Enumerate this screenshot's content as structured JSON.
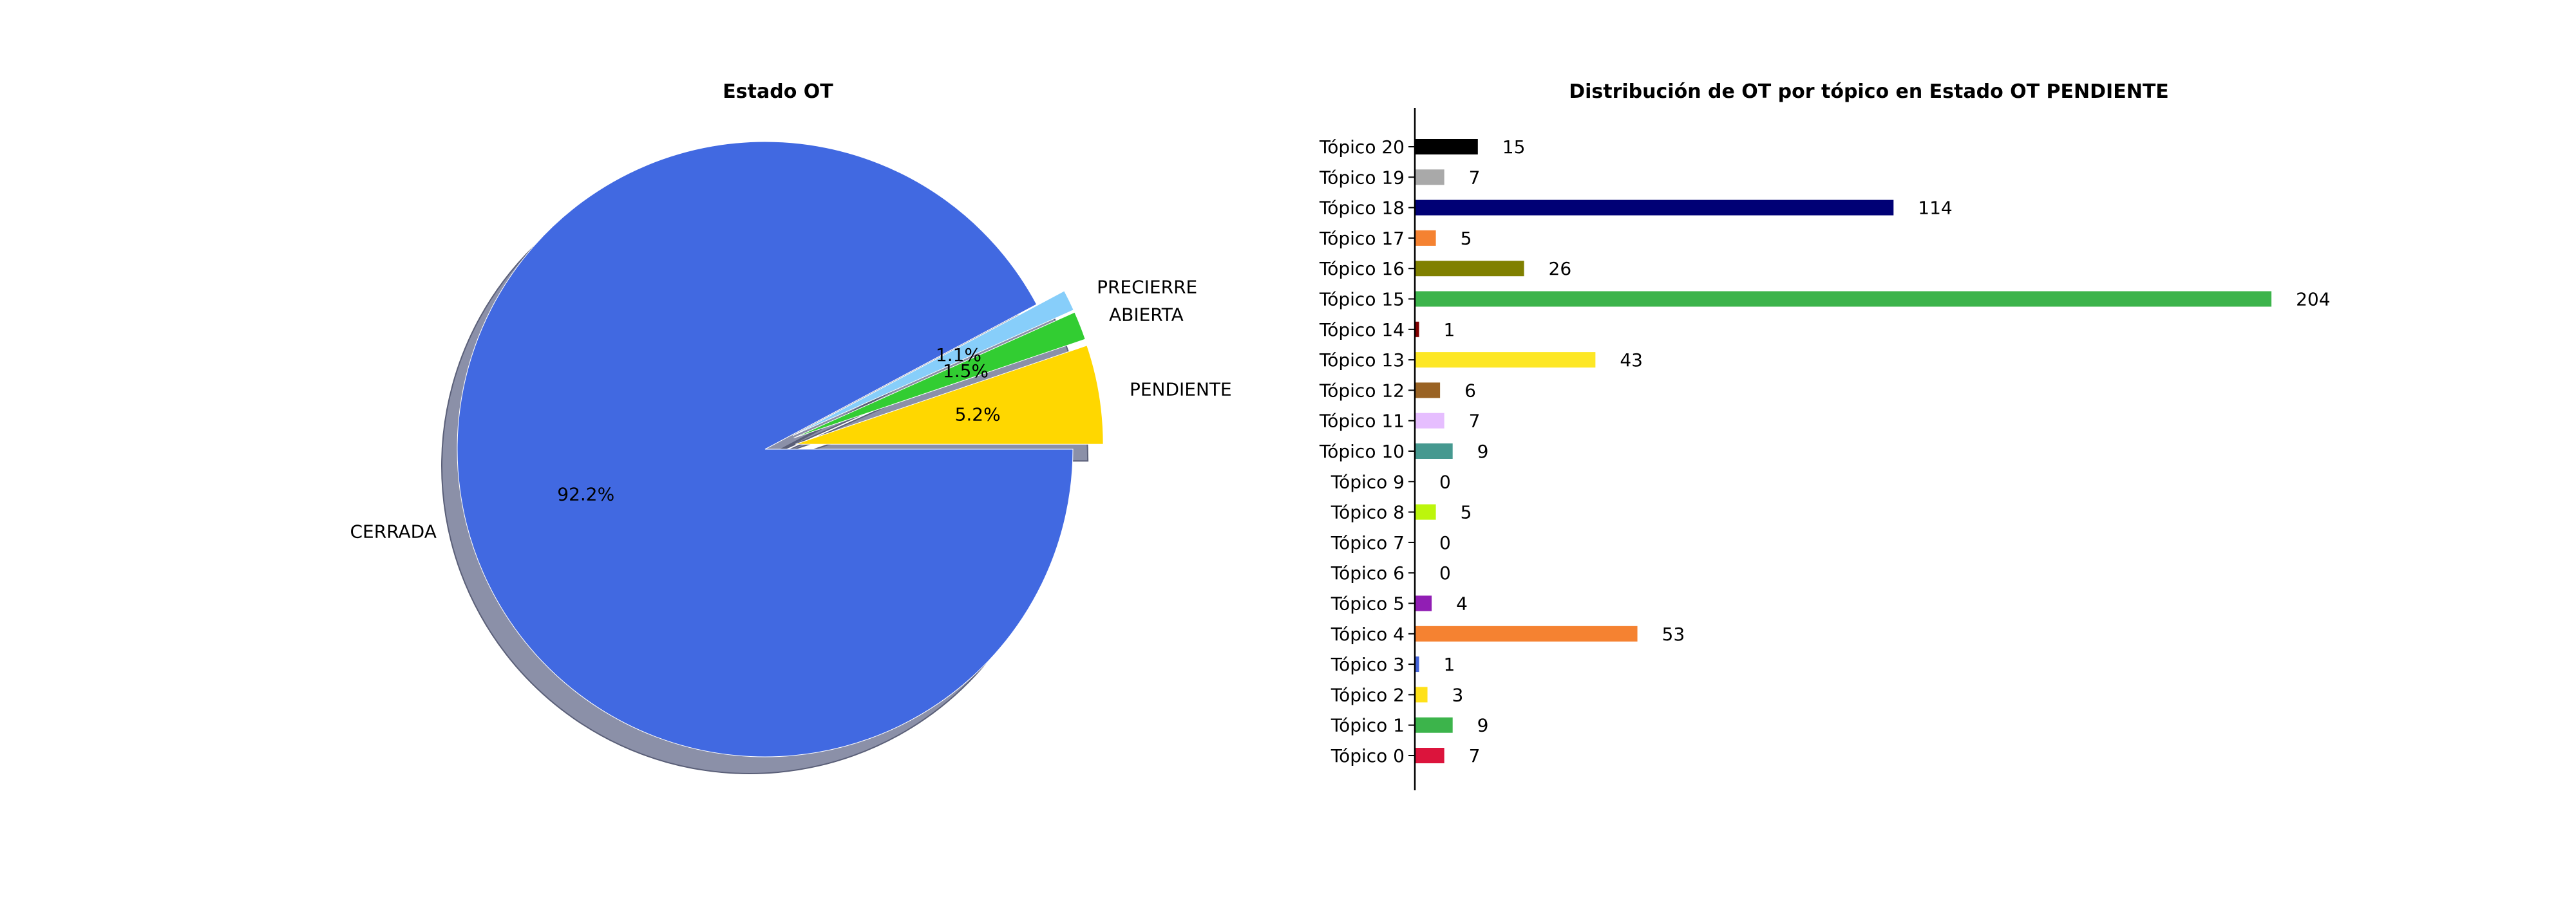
{
  "chart_data": [
    {
      "type": "pie",
      "title": "Estado OT",
      "slices": [
        {
          "label": "CERRADA",
          "value": 92.2,
          "pct_label": "92.2%",
          "color": "#4169e1",
          "explode": 0.0
        },
        {
          "label": "PENDIENTE",
          "value": 5.2,
          "pct_label": "5.2%",
          "color": "#ffd700",
          "explode": 0.1
        },
        {
          "label": "ABIERTA",
          "value": 1.5,
          "pct_label": "1.5%",
          "color": "#32cd32",
          "explode": 0.1
        },
        {
          "label": "PRECIERRE",
          "value": 1.1,
          "pct_label": "1.1%",
          "color": "#87cefa",
          "explode": 0.1
        }
      ],
      "shadow": true,
      "shadow_color": "#8b90a8"
    },
    {
      "type": "bar",
      "orientation": "horizontal",
      "title": "Distribución de OT por tópico en Estado OT PENDIENTE",
      "categories": [
        "Tópico 0",
        "Tópico 1",
        "Tópico 2",
        "Tópico 3",
        "Tópico 4",
        "Tópico 5",
        "Tópico 6",
        "Tópico 7",
        "Tópico 8",
        "Tópico 9",
        "Tópico 10",
        "Tópico 11",
        "Tópico 12",
        "Tópico 13",
        "Tópico 14",
        "Tópico 15",
        "Tópico 16",
        "Tópico 17",
        "Tópico 18",
        "Tópico 19",
        "Tópico 20"
      ],
      "values": [
        7,
        9,
        3,
        1,
        53,
        4,
        0,
        0,
        5,
        0,
        9,
        7,
        6,
        43,
        1,
        204,
        26,
        5,
        114,
        7,
        15
      ],
      "colors": [
        "#dc143c",
        "#3cb44b",
        "#ffe119",
        "#4363d8",
        "#f58231",
        "#911eb4",
        "#46f0f0",
        "#f032e6",
        "#bcf60c",
        "#fabebe",
        "#469990",
        "#e6beff",
        "#9a6324",
        "#fde725",
        "#800000",
        "#3cb44b",
        "#808000",
        "#f58231",
        "#000075",
        "#a9a9a9",
        "#000000"
      ],
      "xlim": [
        0,
        225
      ],
      "grid": false,
      "data_labels": true
    }
  ]
}
